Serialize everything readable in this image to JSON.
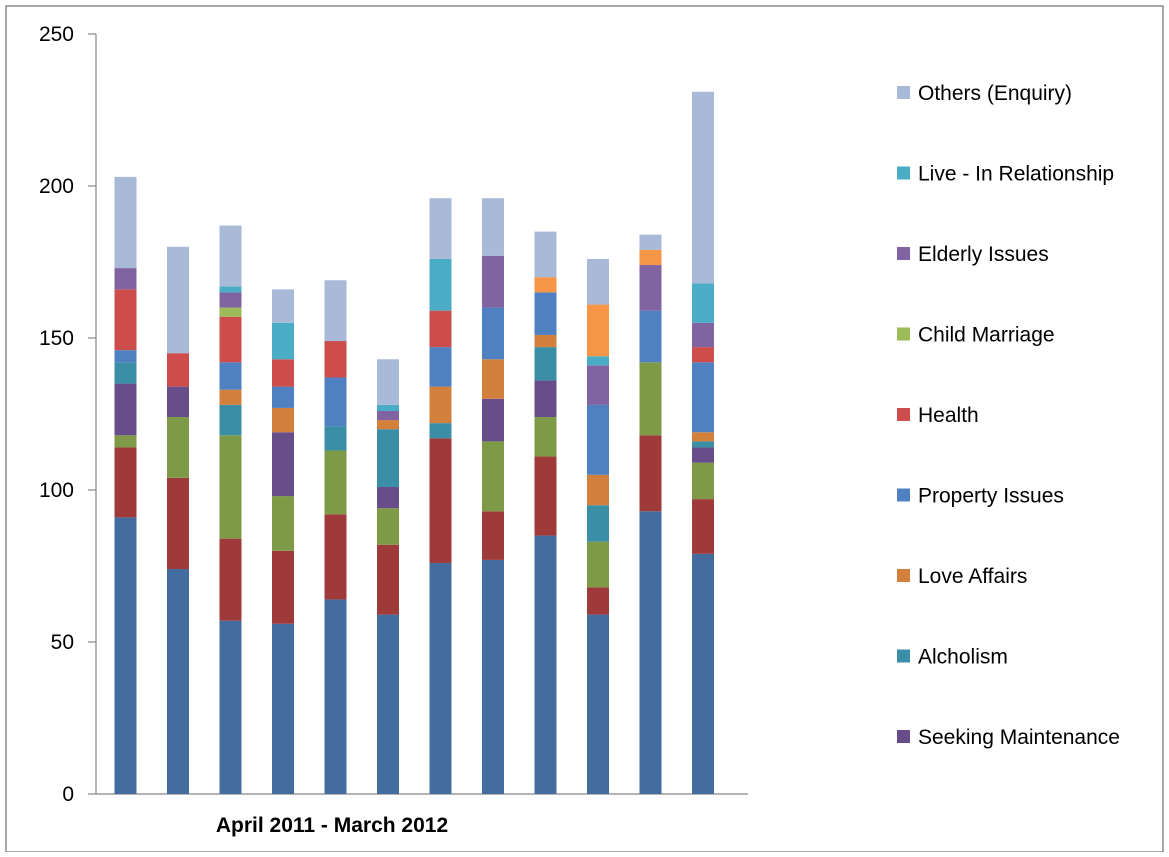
{
  "chart_data": {
    "type": "bar",
    "stacked": true,
    "title": "",
    "xlabel": "April 2011 - March 2012",
    "ylabel": "",
    "ylim": [
      0,
      250
    ],
    "yticks": [
      0,
      50,
      100,
      150,
      200,
      250
    ],
    "grid": false,
    "legend_position": "right",
    "categories": [
      "",
      "",
      "",
      "",
      "",
      "",
      "",
      "",
      "",
      "",
      "",
      ""
    ],
    "series": [
      {
        "name": "",
        "color": "#436c9f",
        "values": [
          91,
          74,
          57,
          56,
          64,
          59,
          76,
          77,
          85,
          59,
          93,
          79
        ]
      },
      {
        "name": "",
        "color": "#9e3b3a",
        "values": [
          23,
          30,
          27,
          24,
          28,
          23,
          41,
          16,
          26,
          9,
          25,
          18
        ]
      },
      {
        "name": "",
        "color": "#7f9a46",
        "values": [
          4,
          20,
          34,
          18,
          21,
          12,
          0,
          23,
          13,
          15,
          24,
          12
        ]
      },
      {
        "name": "Seeking Maintenance",
        "color": "#674d89",
        "values": [
          17,
          10,
          0,
          21,
          0,
          7,
          0,
          14,
          12,
          0,
          0,
          5
        ]
      },
      {
        "name": "Alcholism",
        "color": "#3a8ea6",
        "values": [
          7,
          0,
          10,
          0,
          8,
          19,
          5,
          0,
          11,
          12,
          0,
          2
        ]
      },
      {
        "name": "Love Affairs",
        "color": "#d2803c",
        "values": [
          0,
          0,
          5,
          8,
          0,
          3,
          12,
          13,
          4,
          10,
          0,
          3
        ]
      },
      {
        "name": "Property Issues",
        "color": "#4f81c2",
        "values": [
          4,
          0,
          9,
          7,
          16,
          0,
          13,
          17,
          14,
          23,
          17,
          23
        ]
      },
      {
        "name": "Health",
        "color": "#cc4d4b",
        "values": [
          20,
          11,
          15,
          9,
          12,
          0,
          12,
          0,
          0,
          0,
          0,
          5
        ]
      },
      {
        "name": "Child Marriage",
        "color": "#9cbb59",
        "values": [
          0,
          0,
          3,
          0,
          0,
          0,
          0,
          0,
          0,
          0,
          0,
          0
        ]
      },
      {
        "name": "Elderly Issues",
        "color": "#8064a2",
        "values": [
          7,
          0,
          5,
          0,
          0,
          3,
          0,
          17,
          0,
          13,
          15,
          8
        ]
      },
      {
        "name": "Live - In Relationship",
        "color": "#4bacc6",
        "values": [
          0,
          0,
          2,
          12,
          0,
          2,
          17,
          0,
          0,
          3,
          0,
          13
        ]
      },
      {
        "name": "",
        "color": "#f79646",
        "values": [
          0,
          0,
          0,
          0,
          0,
          0,
          0,
          0,
          5,
          17,
          5,
          0
        ]
      },
      {
        "name": "Others (Enquiry)",
        "color": "#a9b9d8",
        "values": [
          30,
          35,
          20,
          11,
          20,
          15,
          20,
          19,
          15,
          15,
          5,
          63
        ]
      }
    ]
  }
}
